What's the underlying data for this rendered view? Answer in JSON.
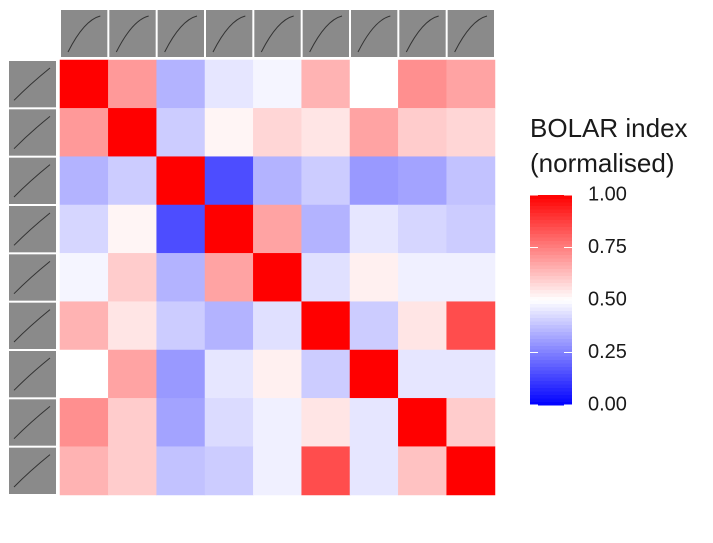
{
  "chart_data": {
    "type": "heatmap",
    "x_categories": [
      null,
      null,
      null,
      null,
      null,
      null,
      null,
      null,
      null
    ],
    "y_categories": [
      null,
      null,
      null,
      null,
      null,
      null,
      null,
      null,
      null
    ],
    "values": [
      [
        1,
        0.7,
        0.35,
        0.45,
        0.48,
        0.65,
        0.5,
        0.72,
        0.68
      ],
      [
        0.7,
        1,
        0.4,
        0.52,
        0.58,
        0.55,
        0.68,
        0.6,
        0.58
      ],
      [
        0.35,
        0.4,
        1,
        0.15,
        0.35,
        0.4,
        0.3,
        0.32,
        0.38
      ],
      [
        0.42,
        0.52,
        0.15,
        1,
        0.68,
        0.35,
        0.45,
        0.42,
        0.4
      ],
      [
        0.48,
        0.6,
        0.35,
        0.68,
        1,
        0.44,
        0.53,
        0.47,
        0.47
      ],
      [
        0.65,
        0.55,
        0.4,
        0.35,
        0.44,
        1,
        0.4,
        0.55,
        0.85
      ],
      [
        0.5,
        0.68,
        0.3,
        0.45,
        0.53,
        0.4,
        1,
        0.45,
        0.45
      ],
      [
        0.72,
        0.6,
        0.32,
        0.43,
        0.47,
        0.55,
        0.45,
        1,
        0.6
      ],
      [
        0.65,
        0.6,
        0.38,
        0.4,
        0.47,
        0.85,
        0.45,
        0.62,
        1
      ]
    ],
    "legend_title": [
      "BOLAR index",
      "(normalised)"
    ],
    "zlim": [
      0,
      1
    ],
    "colors": {
      "low": "#0000ff",
      "mid": "#ffffff",
      "high": "#ff0000"
    },
    "zticks": [
      {
        "value": 0,
        "label": "0.00"
      },
      {
        "value": 0.25,
        "label": "0.25"
      },
      {
        "value": 0.5,
        "label": "0.50"
      },
      {
        "value": 0.75,
        "label": "0.75"
      },
      {
        "value": 1,
        "label": "1.00"
      }
    ]
  }
}
